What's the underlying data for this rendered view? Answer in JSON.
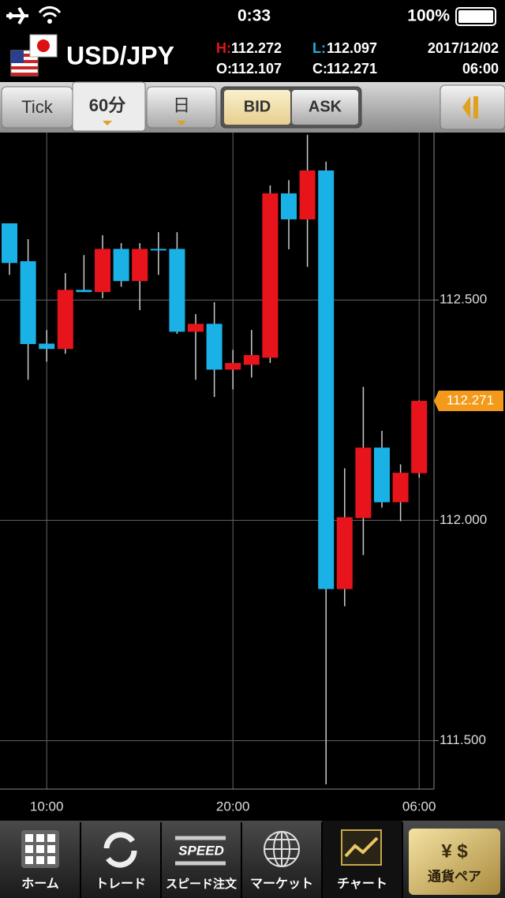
{
  "status_bar": {
    "time": "0:33",
    "battery": "100%"
  },
  "header": {
    "pair": "USD/JPY",
    "quotes": [
      {
        "label": "H:",
        "value": "112.272"
      },
      {
        "label": "L:",
        "value": "112.097"
      },
      {
        "label": "O:",
        "value": "112.107"
      },
      {
        "label": "C:",
        "value": "112.271"
      }
    ],
    "date": "2017/12/02",
    "time": "06:00"
  },
  "toolbar": {
    "buttons": [
      "Tick",
      "60分",
      "日"
    ],
    "price_side": [
      "BID",
      "ASK"
    ]
  },
  "tabs": {
    "labels": [
      "ホーム",
      "トレード",
      "スピード注文",
      "マーケット",
      "チャート",
      "通貨ペア"
    ],
    "speed_icon": "SPEED"
  },
  "chart_data": {
    "type": "candlestick",
    "categories": [
      null,
      null,
      "10:00",
      null,
      null,
      null,
      null,
      null,
      null,
      null,
      null,
      null,
      "20:00",
      null,
      null,
      null,
      null,
      null,
      null,
      null,
      null,
      null,
      "06:00"
    ],
    "open": [
      112.674,
      112.588,
      112.401,
      112.389,
      112.523,
      112.518,
      112.616,
      112.543,
      112.616,
      112.616,
      112.428,
      112.446,
      112.342,
      112.353,
      112.369,
      112.742,
      112.683,
      112.794,
      111.844,
      112.005,
      112.165,
      112.041,
      112.107
    ],
    "high": [
      112.674,
      112.638,
      112.432,
      112.561,
      112.602,
      112.647,
      112.629,
      112.629,
      112.654,
      112.654,
      112.468,
      112.495,
      112.387,
      112.432,
      112.76,
      112.772,
      112.875,
      112.814,
      112.118,
      112.303,
      112.203,
      112.127,
      112.272
    ],
    "low": [
      112.557,
      112.319,
      112.36,
      112.378,
      112.518,
      112.504,
      112.53,
      112.477,
      112.557,
      112.423,
      112.319,
      112.28,
      112.297,
      112.324,
      112.357,
      112.615,
      112.575,
      111.401,
      111.805,
      111.921,
      112.029,
      111.998,
      112.097
    ],
    "close": [
      112.584,
      112.4,
      112.389,
      112.523,
      112.518,
      112.616,
      112.543,
      112.616,
      112.613,
      112.428,
      112.446,
      112.342,
      112.357,
      112.375,
      112.742,
      112.683,
      112.794,
      111.844,
      112.007,
      112.165,
      112.041,
      112.108,
      112.271
    ],
    "up_color": "#e8141c",
    "down_color": "#1ab2e6",
    "ylim": [
      111.39,
      112.88
    ],
    "yticks": [
      {
        "value": 111.5,
        "label": "111.500"
      },
      {
        "value": 112,
        "label": "112.000"
      },
      {
        "value": 112.5,
        "label": "112.500"
      }
    ],
    "last_price": 112.271,
    "grid": true
  }
}
